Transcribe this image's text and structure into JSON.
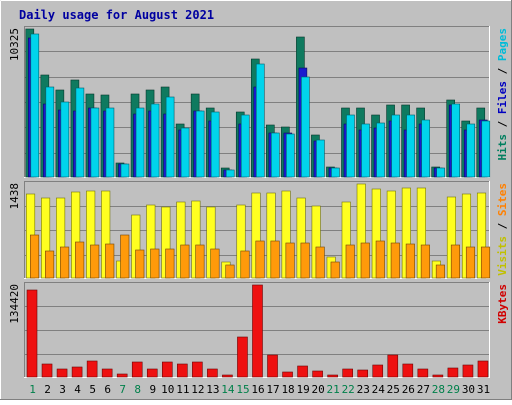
{
  "chart_data": {
    "type": "bar",
    "title": "Daily usage for August 2021",
    "categories": [
      "1",
      "2",
      "3",
      "4",
      "5",
      "6",
      "7",
      "8",
      "9",
      "10",
      "11",
      "12",
      "13",
      "14",
      "15",
      "16",
      "17",
      "18",
      "19",
      "20",
      "21",
      "22",
      "23",
      "24",
      "25",
      "26",
      "27",
      "28",
      "29",
      "30",
      "31"
    ],
    "weekend_days": [
      "1",
      "7",
      "8",
      "14",
      "15",
      "21",
      "22",
      "28",
      "29"
    ],
    "panels": [
      {
        "id": "hits",
        "max_label": "10325",
        "ylim": [
          0,
          10325
        ],
        "right_labels": [
          {
            "text": "Hits",
            "color": "#007f5f"
          },
          {
            "text": "Files",
            "color": "#0000c0"
          },
          {
            "text": "Pages",
            "color": "#00bcd8"
          }
        ],
        "series": [
          {
            "name": "Hits",
            "color": "#0f7a5f",
            "values": [
              10325,
              7100,
              6100,
              6800,
              5800,
              5700,
              1000,
              5800,
              6100,
              6300,
              3700,
              5800,
              4800,
              600,
              4500,
              8200,
              3600,
              3500,
              9800,
              2900,
              700,
              4800,
              4800,
              4300,
              5000,
              5000,
              4800,
              700,
              5400,
              3900,
              4800
            ]
          },
          {
            "name": "Files",
            "color": "#1a1acf",
            "values": [
              9700,
              5100,
              4700,
              4600,
              4800,
              4600,
              900,
              4400,
              4600,
              4400,
              3300,
              4600,
              3900,
              500,
              3700,
              6300,
              3100,
              3100,
              7600,
              2500,
              600,
              3700,
              3300,
              3400,
              3900,
              3300,
              3700,
              600,
              5000,
              3300,
              4000
            ]
          },
          {
            "name": "Pages",
            "color": "#00d4ec",
            "values": [
              10000,
              6300,
              5200,
              6200,
              4800,
              4800,
              900,
              4800,
              5100,
              5600,
              3400,
              4600,
              4500,
              500,
              4300,
              7900,
              3100,
              3000,
              7000,
              2600,
              600,
              4300,
              3700,
              3800,
              4300,
              4300,
              4000,
              600,
              5100,
              3700,
              3900
            ]
          }
        ]
      },
      {
        "id": "visits",
        "max_label": "1438",
        "ylim": [
          0,
          1438
        ],
        "right_labels": [
          {
            "text": "Visits",
            "color": "#c0c000"
          },
          {
            "text": "Sites",
            "color": "#ff8000"
          }
        ],
        "series": [
          {
            "name": "Visits",
            "color": "#ffff20",
            "values": [
              1280,
              1220,
              1220,
              1320,
              1330,
              1330,
              260,
              960,
              1120,
              1090,
              1170,
              1180,
              1090,
              240,
              1120,
              1300,
              1300,
              1330,
              1230,
              1100,
              320,
              1170,
              1438,
              1360,
              1330,
              1380,
              1380,
              260,
              1240,
              1290,
              1300
            ]
          },
          {
            "name": "Sites",
            "color": "#ff9a0a",
            "values": [
              660,
              410,
              470,
              550,
              500,
              520,
              660,
              430,
              440,
              450,
              500,
              500,
              450,
              200,
              420,
              560,
              560,
              530,
              530,
              480,
              240,
              510,
              530,
              560,
              530,
              520,
              510,
              200,
              510,
              480,
              480
            ]
          }
        ]
      },
      {
        "id": "kbytes",
        "max_label": "134420",
        "ylim": [
          0,
          134420
        ],
        "right_labels": [
          {
            "text": "KBytes",
            "color": "#d00000"
          }
        ],
        "series": [
          {
            "name": "KBytes",
            "color": "#ee1010",
            "values": [
              127000,
              18500,
              12000,
              14000,
              23000,
              11000,
              4000,
              21500,
              12000,
              22500,
              19000,
              21500,
              11000,
              3000,
              58000,
              134420,
              32000,
              7000,
              16500,
              9000,
              3000,
              12000,
              10500,
              18000,
              32500,
              18500,
              11000,
              3000,
              13000,
              18000,
              23000
            ]
          }
        ]
      }
    ]
  }
}
